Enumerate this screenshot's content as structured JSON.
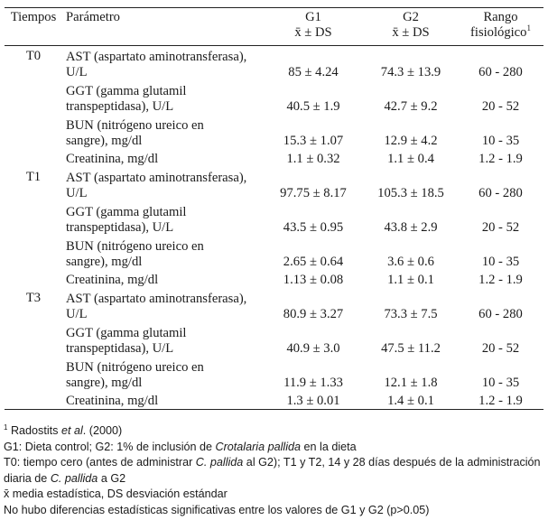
{
  "headers": {
    "time": "Tiempos",
    "param": "Parámetro",
    "g1_l1": "G1",
    "g1_l2": "x̄ ± DS",
    "g2_l1": "G2",
    "g2_l2": "x̄ ± DS",
    "rango_l1": "Rango",
    "rango_l2": "fisiológico",
    "rango_sup": "1"
  },
  "groups": [
    {
      "time": "T0",
      "rows": [
        {
          "p1": "AST (aspartato aminotransferasa),",
          "p2": "U/L",
          "g1": "85 ± 4.24",
          "g2": "74.3 ± 13.9",
          "r": "60 - 280"
        },
        {
          "p1": "GGT (gamma glutamil",
          "p2": "transpeptidasa), U/L",
          "g1": "40.5 ± 1.9",
          "g2": "42.7 ± 9.2",
          "r": "20 - 52"
        },
        {
          "p1": "BUN (nitrógeno ureico en",
          "p2": "sangre), mg/dl",
          "g1": "15.3 ± 1.07",
          "g2": "12.9 ± 4.2",
          "r": "10 - 35"
        },
        {
          "p1": "Creatinina, mg/dl",
          "p2": "",
          "g1": "1.1 ± 0.32",
          "g2": "1.1 ± 0.4",
          "r": "1.2 - 1.9"
        }
      ]
    },
    {
      "time": "T1",
      "rows": [
        {
          "p1": "AST (aspartato aminotransferasa),",
          "p2": "U/L",
          "g1": "97.75 ± 8.17",
          "g2": "105.3 ± 18.5",
          "r": "60 - 280"
        },
        {
          "p1": "GGT (gamma glutamil",
          "p2": "transpeptidasa), U/L",
          "g1": "43.5 ± 0.95",
          "g2": "43.8 ± 2.9",
          "r": "20 - 52"
        },
        {
          "p1": "BUN (nitrógeno ureico en",
          "p2": "sangre), mg/dl",
          "g1": "2.65 ± 0.64",
          "g2": "3.6 ± 0.6",
          "r": "10 - 35"
        },
        {
          "p1": "Creatinina, mg/dl",
          "p2": "",
          "g1": "1.13 ± 0.08",
          "g2": "1.1 ± 0.1",
          "r": "1.2 - 1.9"
        }
      ]
    },
    {
      "time": "T3",
      "rows": [
        {
          "p1": "AST (aspartato aminotransferasa),",
          "p2": "U/L",
          "g1": "80.9 ± 3.27",
          "g2": "73.3 ± 7.5",
          "r": "60 - 280"
        },
        {
          "p1": "GGT (gamma glutamil",
          "p2": "transpeptidasa), U/L",
          "g1": "40.9 ± 3.0",
          "g2": "47.5 ± 11.2",
          "r": "20 - 52"
        },
        {
          "p1": "BUN (nitrógeno ureico en",
          "p2": "sangre), mg/dl",
          "g1": "11.9 ± 1.33",
          "g2": "12.1 ± 1.8",
          "r": "10 - 35"
        },
        {
          "p1": "Creatinina, mg/dl",
          "p2": "",
          "g1": "1.3 ± 0.01",
          "g2": "1.4 ± 0.1",
          "r": "1.2 - 1.9"
        }
      ]
    }
  ],
  "notes": {
    "n1_sup": "1",
    "n1_a": " Radostits ",
    "n1_i": "et al",
    "n1_b": ". (2000)",
    "n2_a": "G1: Dieta control; G2: 1% de inclusión de ",
    "n2_i": "Crotalaria pallida",
    "n2_b": " en la dieta",
    "n3_a": "T0: tiempo cero (antes de administrar ",
    "n3_i": "C. pallida",
    "n3_b": " al G2); T1 y T2, 14 y 28 días después de la administración diaria de ",
    "n3_i2": "C. pallida",
    "n3_c": " a G2",
    "n4": "x̄ media estadística, DS desviación estándar",
    "n5": "No hubo diferencias estadísticas significativas entre los valores de G1 y G2 (p>0.05)"
  }
}
